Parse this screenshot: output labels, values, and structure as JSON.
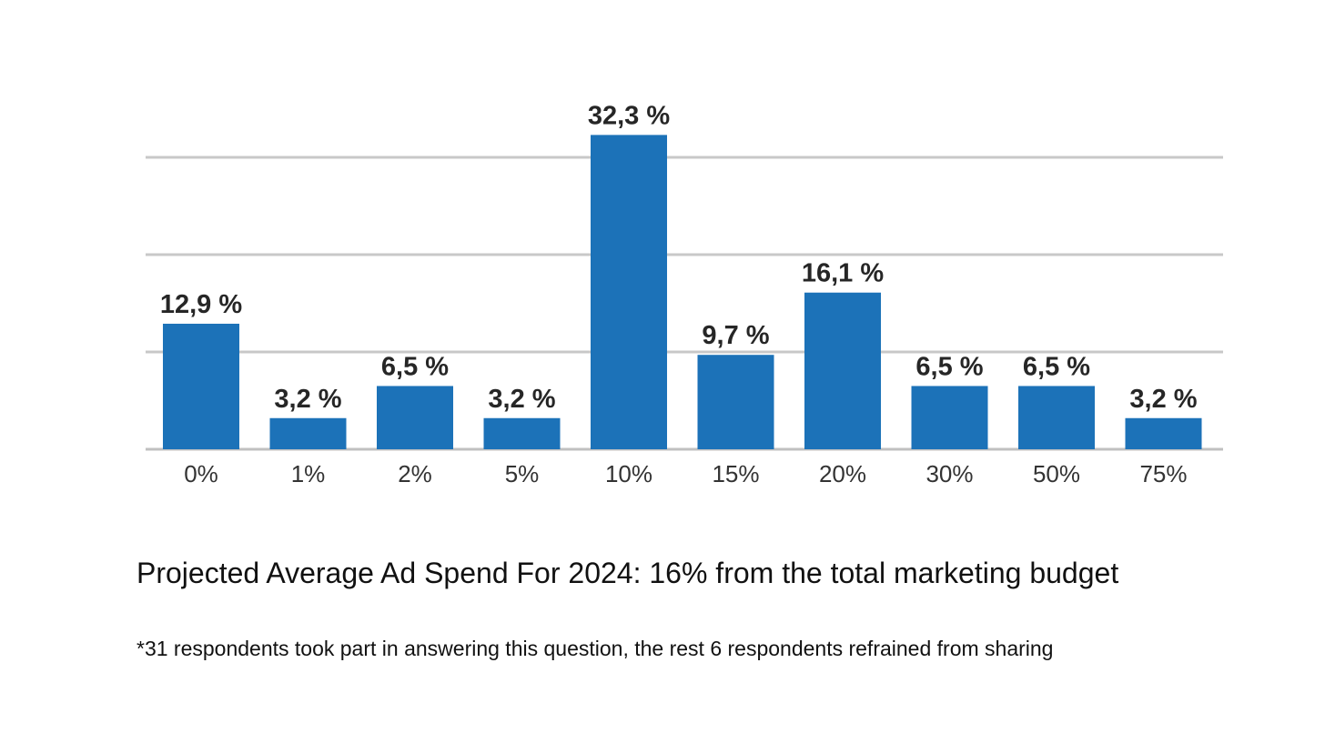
{
  "chart_data": {
    "type": "bar",
    "title": "Projected Average Ad Spend For 2024: 16% from the total marketing budget",
    "footnote": "*31 respondents took part in answering this question, the rest 6 respondents refrained from sharing",
    "categories": [
      "0%",
      "1%",
      "2%",
      "5%",
      "10%",
      "15%",
      "20%",
      "30%",
      "50%",
      "75%"
    ],
    "values": [
      12.9,
      3.2,
      6.5,
      3.2,
      32.3,
      9.7,
      16.1,
      6.5,
      6.5,
      3.2
    ],
    "value_labels": [
      "12,9 %",
      "3,2 %",
      "6,5 %",
      "3,2 %",
      "32,3 %",
      "9,7 %",
      "16,1 %",
      "6,5 %",
      "6,5 %",
      "3,2 %"
    ],
    "xlabel": "",
    "ylabel": "",
    "ylim": [
      0,
      30
    ],
    "grid": true,
    "gridlines_at": [
      10,
      20,
      30
    ],
    "bar_color": "#1c72b8",
    "legend": "none"
  }
}
